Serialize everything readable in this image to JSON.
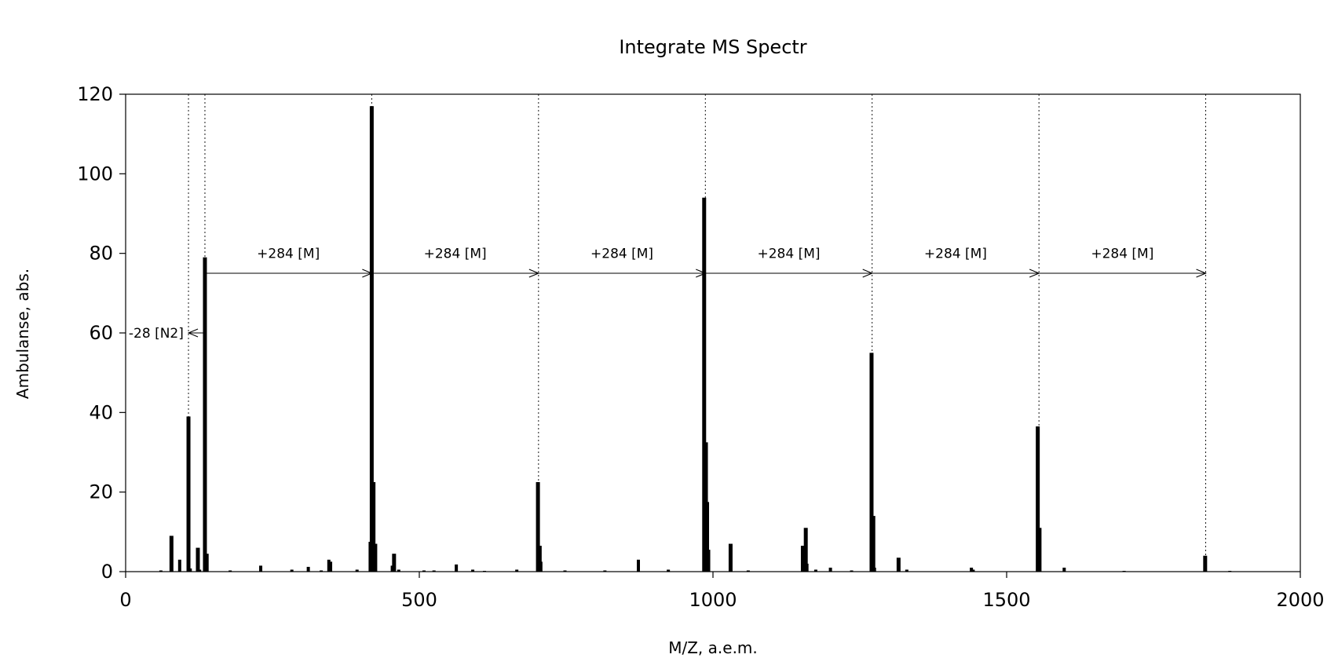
{
  "chart_data": {
    "type": "bar",
    "title": "Integrate MS Spectr",
    "xlabel": "M/Z, a.e.m.",
    "ylabel": "Ambulanse, abs.",
    "xlim": [
      0,
      2000
    ],
    "ylim": [
      0,
      120
    ],
    "xticks": [
      0,
      500,
      1000,
      1500,
      2000
    ],
    "yticks": [
      0,
      20,
      40,
      60,
      80,
      100,
      120
    ],
    "grid": false,
    "legend": "none",
    "bar_color": "#000000",
    "peaks": [
      {
        "x": 60,
        "y": 0.3
      },
      {
        "x": 78,
        "y": 9
      },
      {
        "x": 92,
        "y": 3
      },
      {
        "x": 107,
        "y": 39
      },
      {
        "x": 110,
        "y": 0.8
      },
      {
        "x": 123,
        "y": 6
      },
      {
        "x": 126,
        "y": 0.5
      },
      {
        "x": 135,
        "y": 79
      },
      {
        "x": 138,
        "y": 4.5
      },
      {
        "x": 178,
        "y": 0.3
      },
      {
        "x": 230,
        "y": 1.5
      },
      {
        "x": 283,
        "y": 0.5
      },
      {
        "x": 311,
        "y": 1.2
      },
      {
        "x": 333,
        "y": 0.3
      },
      {
        "x": 346,
        "y": 3
      },
      {
        "x": 349,
        "y": 2.5
      },
      {
        "x": 394,
        "y": 0.5
      },
      {
        "x": 417,
        "y": 7.5
      },
      {
        "x": 419,
        "y": 117
      },
      {
        "x": 422,
        "y": 22.5
      },
      {
        "x": 425,
        "y": 7
      },
      {
        "x": 454,
        "y": 1.5
      },
      {
        "x": 457,
        "y": 4.5
      },
      {
        "x": 465,
        "y": 0.5
      },
      {
        "x": 508,
        "y": 0.3
      },
      {
        "x": 525,
        "y": 0.3
      },
      {
        "x": 563,
        "y": 1.8
      },
      {
        "x": 591,
        "y": 0.5
      },
      {
        "x": 611,
        "y": 0.2
      },
      {
        "x": 666,
        "y": 0.5
      },
      {
        "x": 702,
        "y": 22.5
      },
      {
        "x": 705,
        "y": 6.5
      },
      {
        "x": 707,
        "y": 2.5
      },
      {
        "x": 748,
        "y": 0.3
      },
      {
        "x": 816,
        "y": 0.3
      },
      {
        "x": 873,
        "y": 3
      },
      {
        "x": 924,
        "y": 0.5
      },
      {
        "x": 985,
        "y": 94
      },
      {
        "x": 988,
        "y": 32.5
      },
      {
        "x": 990,
        "y": 17.5
      },
      {
        "x": 992,
        "y": 5.5
      },
      {
        "x": 1030,
        "y": 7
      },
      {
        "x": 1060,
        "y": 0.3
      },
      {
        "x": 1153,
        "y": 6.5
      },
      {
        "x": 1158,
        "y": 11
      },
      {
        "x": 1160,
        "y": 2
      },
      {
        "x": 1175,
        "y": 0.5
      },
      {
        "x": 1200,
        "y": 1
      },
      {
        "x": 1236,
        "y": 0.3
      },
      {
        "x": 1270,
        "y": 55
      },
      {
        "x": 1273,
        "y": 14
      },
      {
        "x": 1275,
        "y": 1
      },
      {
        "x": 1316,
        "y": 3.5
      },
      {
        "x": 1330,
        "y": 0.5
      },
      {
        "x": 1440,
        "y": 1
      },
      {
        "x": 1443,
        "y": 0.5
      },
      {
        "x": 1553,
        "y": 36.5
      },
      {
        "x": 1556,
        "y": 11
      },
      {
        "x": 1598,
        "y": 1
      },
      {
        "x": 1700,
        "y": 0.2
      },
      {
        "x": 1838,
        "y": 4
      },
      {
        "x": 1880,
        "y": 0.2
      }
    ],
    "reference_lines_x": [
      107,
      135,
      419,
      703,
      987,
      1271,
      1555,
      1839
    ],
    "annotations": [
      {
        "text": "-28 [N2]",
        "x": 52,
        "y": 60,
        "arrow_from": 135,
        "arrow_to": 107,
        "arrow_y": 60
      },
      {
        "text": "+284 [M]",
        "x": 277,
        "y": 80,
        "arrow_from": 135,
        "arrow_to": 419,
        "arrow_y": 75
      },
      {
        "text": "+284 [M]",
        "x": 561,
        "y": 80,
        "arrow_from": 419,
        "arrow_to": 703,
        "arrow_y": 75
      },
      {
        "text": "+284 [M]",
        "x": 845,
        "y": 80,
        "arrow_from": 703,
        "arrow_to": 987,
        "arrow_y": 75
      },
      {
        "text": "+284 [M]",
        "x": 1129,
        "y": 80,
        "arrow_from": 987,
        "arrow_to": 1271,
        "arrow_y": 75
      },
      {
        "text": "+284 [M]",
        "x": 1413,
        "y": 80,
        "arrow_from": 1271,
        "arrow_to": 1555,
        "arrow_y": 75
      },
      {
        "text": "+284 [M]",
        "x": 1697,
        "y": 80,
        "arrow_from": 1555,
        "arrow_to": 1839,
        "arrow_y": 75
      }
    ]
  }
}
